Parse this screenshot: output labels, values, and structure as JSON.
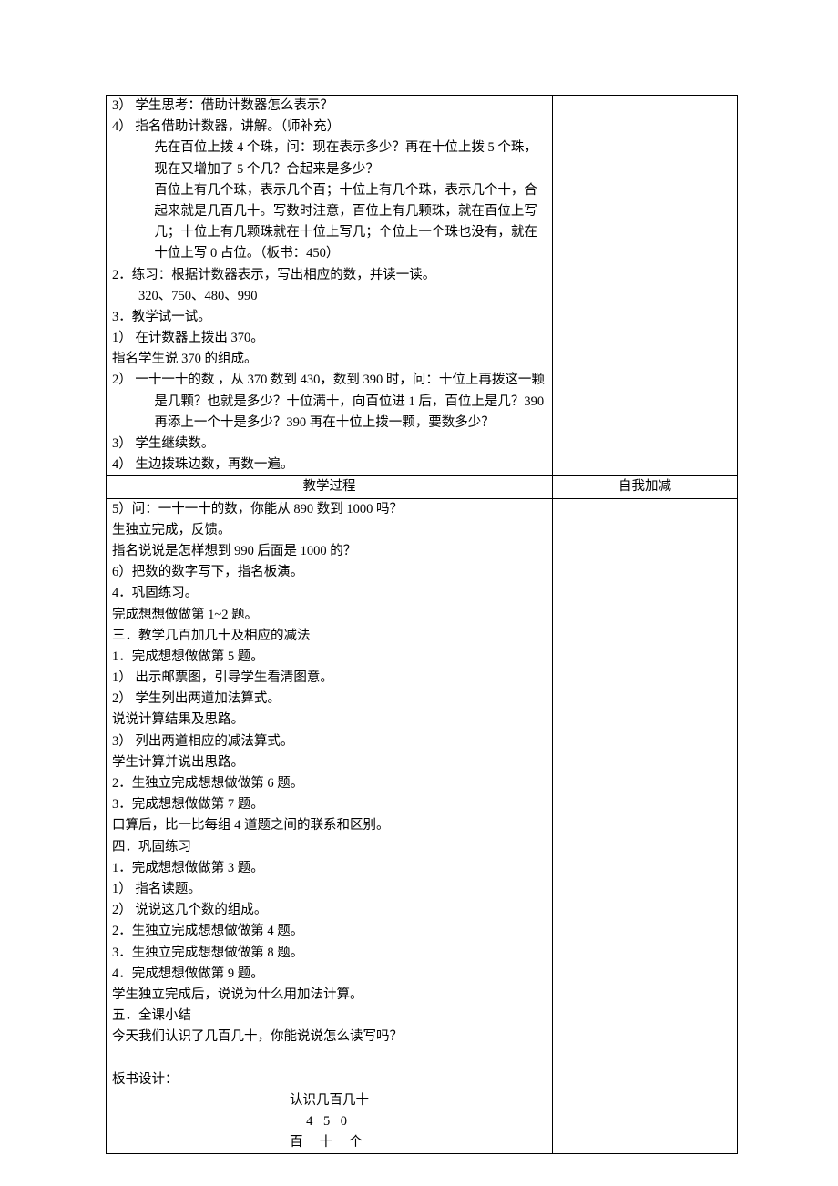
{
  "upper": {
    "l1": "3） 学生思考：借助计数器怎么表示？",
    "l2a": "4） 指名借助计数器，讲解。（师补充）",
    "l2b": "先在百位上拨 4 个珠，问：现在表示多少？再在十位上拨 5 个珠，现在又增加了 5 个几？合起来是多少？",
    "l2c": "百位上有几个珠，表示几个百；十位上有几个珠，表示几个十，合起来就是几百几十。写数时注意，百位上有几颗珠，就在百位上写几；十位上有几颗珠就在十位上写几；个位上一个珠也没有，就在十位上写 0 占位。（板书：450）",
    "l3": "2．练习：根据计数器表示，写出相应的数，并读一读。",
    "l3b": "320、750、480、990",
    "l4": "3．教学试一试。",
    "l5": "1） 在计数器上拨出 370。",
    "l6": "指名学生说 370 的组成。",
    "l7": "2） 一十一十的数 ，从 370 数到 430，数到 390 时，问：十位上再拨这一颗是几颗？也就是多少？十位满十，向百位进 1 后，百位上是几？390 再添上一个十是多少？390 再在十位上拨一颗，要数多少？",
    "l8": "3） 学生继续数。",
    "l9": "4） 生边拨珠边数，再数一遍。"
  },
  "header": {
    "left": "教学过程",
    "right": "自我加减"
  },
  "lower": {
    "l1": "5）问：一十一十的数，你能从 890 数到 1000 吗？",
    "l2": "生独立完成，反馈。",
    "l3": "指名说说是怎样想到 990 后面是 1000 的？",
    "l4": "6）把数的数字写下，指名板演。",
    "l5": "4．巩固练习。",
    "l6": "完成想想做做第 1~2 题。",
    "l7": "三．教学几百加几十及相应的减法",
    "l8": "1．完成想想做做第 5 题。",
    "l9": "1） 出示邮票图，引导学生看清图意。",
    "l10": "2） 学生列出两道加法算式。",
    "l11": "说说计算结果及思路。",
    "l12": "3） 列出两道相应的减法算式。",
    "l13": "学生计算并说出思路。",
    "l14": "2．生独立完成想想做做第 6 题。",
    "l15": "3．完成想想做做第 7 题。",
    "l16": "口算后，比一比每组 4 道题之间的联系和区别。",
    "l17": "四．巩固练习",
    "l18": "1．完成想想做做第 3 题。",
    "l19": "1） 指名读题。",
    "l20": "2） 说说这几个数的组成。",
    "l21": "2．生独立完成想想做做第 4 题。",
    "l22": "3．生独立完成想想做做第 8 题。",
    "l23": "4．完成想想做做第 9 题。",
    "l24": "学生独立完成后，说说为什么用加法计算。",
    "l25": "五．全课小结",
    "l26": "今天我们认识了几百几十，你能说说怎么读写吗？",
    "board_label": "板书设计：",
    "board_title": "认识几百几十",
    "board_num": "450",
    "board_places": "百 十 个"
  }
}
